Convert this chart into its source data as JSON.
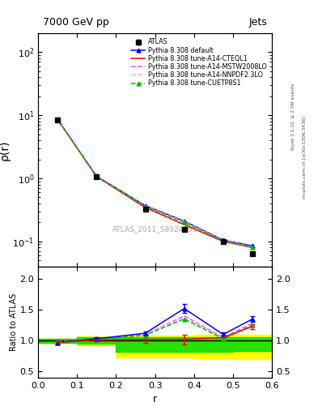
{
  "title_left": "7000 GeV pp",
  "title_right": "Jets",
  "ylabel_main": "ρ(r)",
  "ylabel_ratio": "Ratio to ATLAS",
  "xlabel": "r",
  "right_label_top": "Rivet 3.1.10, ≥ 2.5M events",
  "right_label_bottom": "mcplots.cern.ch [arXiv:1306.3436]",
  "watermark": "ATLAS_2011_S8924791",
  "r_vals": [
    0.05,
    0.15,
    0.275,
    0.375,
    0.475,
    0.55
  ],
  "atlas_y": [
    8.5,
    1.05,
    0.33,
    0.155,
    0.1,
    0.063
  ],
  "atlas_yerr": [
    0.4,
    0.05,
    0.015,
    0.01,
    0.006,
    0.004
  ],
  "pythia_default_y": [
    8.6,
    1.08,
    0.37,
    0.21,
    0.105,
    0.085
  ],
  "pythia_cteql1_y": [
    8.55,
    1.06,
    0.345,
    0.185,
    0.1,
    0.08
  ],
  "pythia_mstw_y": [
    8.6,
    1.07,
    0.365,
    0.205,
    0.104,
    0.082
  ],
  "pythia_nnpdf_y": [
    8.6,
    1.07,
    0.365,
    0.205,
    0.104,
    0.082
  ],
  "pythia_cuetp8_y": [
    8.58,
    1.07,
    0.36,
    0.2,
    0.103,
    0.081
  ],
  "ratio_default": [
    0.97,
    1.03,
    1.12,
    1.52,
    1.1,
    1.35
  ],
  "ratio_cteql1": [
    0.97,
    1.01,
    1.02,
    1.02,
    1.05,
    1.23
  ],
  "ratio_mstw": [
    0.98,
    1.02,
    1.1,
    1.4,
    1.05,
    1.28
  ],
  "ratio_nnpdf": [
    0.98,
    1.02,
    1.1,
    1.38,
    1.04,
    1.25
  ],
  "ratio_cuetp8": [
    0.98,
    1.02,
    1.09,
    1.35,
    1.03,
    1.25
  ],
  "ratio_default_err": [
    0.03,
    0.02,
    0.03,
    0.07,
    0.04,
    0.05
  ],
  "ratio_cteql1_err": [
    0.03,
    0.02,
    0.05,
    0.08,
    0.05,
    0.04
  ],
  "green_band_x": [
    0.0,
    0.1,
    0.2,
    0.3,
    0.4,
    0.5,
    0.6
  ],
  "green_band_lo": [
    0.97,
    0.95,
    0.82,
    0.82,
    0.82,
    0.83,
    0.83
  ],
  "green_band_hi": [
    1.03,
    1.05,
    1.05,
    1.05,
    1.05,
    1.05,
    1.05
  ],
  "yellow_band_x": [
    0.0,
    0.1,
    0.2,
    0.3,
    0.4,
    0.5,
    0.6
  ],
  "yellow_band_lo": [
    0.97,
    0.93,
    0.73,
    0.73,
    0.72,
    0.7,
    0.7
  ],
  "yellow_band_hi": [
    1.03,
    1.07,
    1.08,
    1.08,
    1.09,
    1.09,
    1.4
  ],
  "color_default": "#0000ff",
  "color_cteql1": "#ff0000",
  "color_mstw": "#ff44ff",
  "color_nnpdf": "#ffaaff",
  "color_cuetp8": "#00bb00",
  "ylim_main": [
    0.04,
    200
  ],
  "ylim_ratio": [
    0.4,
    2.2
  ],
  "yticks_ratio": [
    0.5,
    1.0,
    1.5,
    2.0
  ],
  "xlim": [
    0.0,
    0.6
  ]
}
